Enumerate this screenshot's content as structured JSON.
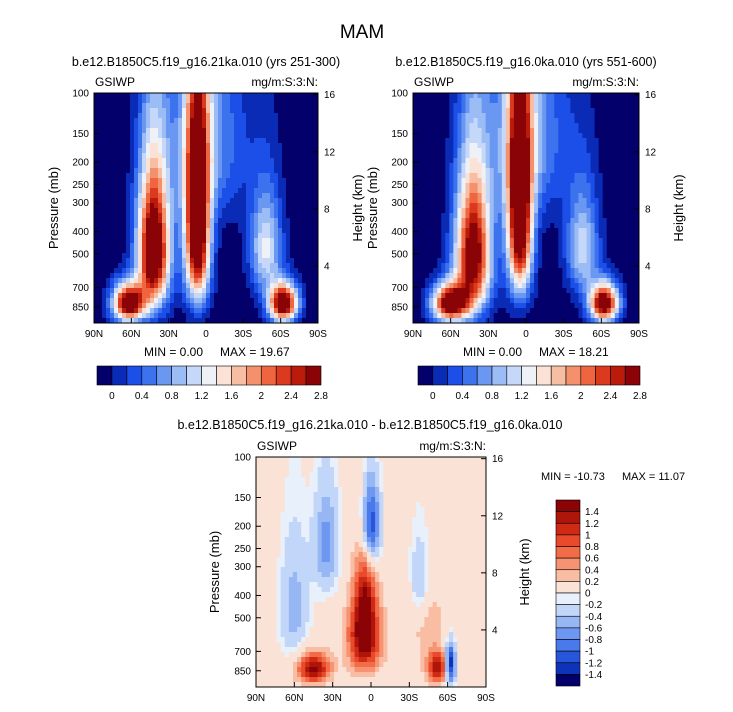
{
  "page_title": "MAM",
  "chart_data": [
    {
      "type": "heatmap",
      "title": "b.e12.B1850C5.f19_g16.21ka.010 (yrs 251-300)",
      "left_label": "GSIWP",
      "right_label": "mg/m:S:3:N:",
      "xlabel": "",
      "ylabel": "Pressure (mb)",
      "ylabel_right": "Height (km)",
      "x_ticks": [
        "90N",
        "60N",
        "30N",
        "0",
        "30S",
        "60S",
        "90S"
      ],
      "y_ticks": [
        "100",
        "150",
        "200",
        "250",
        "300",
        "400",
        "500",
        "700",
        "850"
      ],
      "y_ticks_right": [
        "16",
        "12",
        "8",
        "4"
      ],
      "min_label": "MIN =  0.00",
      "max_label": "MAX = 19.67",
      "features": [
        {
          "lat": 42,
          "p": 480,
          "amp": 3.6,
          "sl": 9,
          "sp": 230
        },
        {
          "lat": 7,
          "p": 380,
          "amp": 3.8,
          "sl": 7,
          "sp": 260
        },
        {
          "lat": 62,
          "p": 820,
          "amp": 3.4,
          "sl": 9,
          "sp": 110
        },
        {
          "lat": -62,
          "p": 820,
          "amp": 3.4,
          "sl": 8,
          "sp": 110
        },
        {
          "lat": -48,
          "p": 470,
          "amp": 1.4,
          "sl": 9,
          "sp": 170
        },
        {
          "lat": 0,
          "p": 160,
          "amp": 0.9,
          "sl": 22,
          "sp": 120
        }
      ]
    },
    {
      "type": "heatmap",
      "title": "b.e12.B1850C5.f19_g16.0ka.010 (yrs 551-600)",
      "left_label": "GSIWP",
      "right_label": "mg/m:S:3:N:",
      "xlabel": "",
      "ylabel": "Pressure (mb)",
      "ylabel_right": "Height (km)",
      "x_ticks": [
        "90N",
        "60N",
        "30N",
        "0",
        "30S",
        "60S",
        "90S"
      ],
      "y_ticks": [
        "100",
        "150",
        "200",
        "250",
        "300",
        "400",
        "500",
        "700",
        "850"
      ],
      "y_ticks_right": [
        "16",
        "12",
        "8",
        "4"
      ],
      "min_label": "MIN =  0.00",
      "max_label": "MAX = 18.21",
      "features": [
        {
          "lat": 42,
          "p": 500,
          "amp": 3.2,
          "sl": 10,
          "sp": 240
        },
        {
          "lat": 5,
          "p": 340,
          "amp": 3.6,
          "sl": 7,
          "sp": 250
        },
        {
          "lat": 60,
          "p": 820,
          "amp": 3.3,
          "sl": 10,
          "sp": 110
        },
        {
          "lat": -62,
          "p": 820,
          "amp": 3.3,
          "sl": 8,
          "sp": 110
        },
        {
          "lat": -45,
          "p": 470,
          "amp": 1.3,
          "sl": 9,
          "sp": 170
        },
        {
          "lat": 0,
          "p": 150,
          "amp": 1.0,
          "sl": 22,
          "sp": 120
        }
      ]
    },
    {
      "type": "heatmap",
      "title": "b.e12.B1850C5.f19_g16.21ka.010 - b.e12.B1850C5.f19_g16.0ka.010",
      "left_label": "GSIWP",
      "right_label": "mg/m:S:3:N:",
      "xlabel": "",
      "ylabel": "Pressure (mb)",
      "ylabel_right": "Height (km)",
      "x_ticks": [
        "90N",
        "60N",
        "30N",
        "0",
        "30S",
        "60S",
        "90S"
      ],
      "y_ticks": [
        "100",
        "150",
        "200",
        "250",
        "300",
        "400",
        "500",
        "700",
        "850"
      ],
      "y_ticks_right": [
        "16",
        "12",
        "8",
        "4"
      ],
      "min_label": "MIN = -10.73",
      "max_label": "MAX =  11.07",
      "features": [
        {
          "lat": 5,
          "p": 620,
          "amp": 1.6,
          "sl": 9,
          "sp": 150
        },
        {
          "lat": 5,
          "p": 400,
          "amp": 1.0,
          "sl": 6,
          "sp": 130
        },
        {
          "lat": -40,
          "p": 520,
          "amp": 0.6,
          "sl": 10,
          "sp": 120
        },
        {
          "lat": 0,
          "p": 200,
          "amp": -1.3,
          "sl": 5,
          "sp": 60
        },
        {
          "lat": 35,
          "p": 240,
          "amp": -0.7,
          "sl": 7,
          "sp": 90
        },
        {
          "lat": 45,
          "p": 830,
          "amp": 1.5,
          "sl": 9,
          "sp": 90
        },
        {
          "lat": -52,
          "p": 820,
          "amp": 1.4,
          "sl": 6,
          "sp": 90
        },
        {
          "lat": -62,
          "p": 800,
          "amp": -1.6,
          "sl": 3,
          "sp": 110
        },
        {
          "lat": -38,
          "p": 420,
          "amp": -0.6,
          "sl": 6,
          "sp": 140
        },
        {
          "lat": 60,
          "p": 450,
          "amp": -0.5,
          "sl": 8,
          "sp": 200
        }
      ]
    }
  ],
  "colorbar_abs": {
    "labels": [
      "0",
      "0.4",
      "0.8",
      "1.2",
      "1.6",
      "2",
      "2.4",
      "2.8"
    ],
    "colors": [
      "#04006b",
      "#0a2bb5",
      "#1c4ee8",
      "#3c72ee",
      "#6a97f2",
      "#9cbcf6",
      "#c6d8fa",
      "#eef1f6",
      "#fbe2d6",
      "#f8bea4",
      "#f4916c",
      "#ee653f",
      "#dc3a1e",
      "#bb1b0b",
      "#8a0306"
    ]
  },
  "colorbar_diff": {
    "labels": [
      "1.4",
      "1.2",
      "1",
      "0.8",
      "0.6",
      "0.4",
      "0.2",
      "0",
      "-0.2",
      "-0.4",
      "-0.6",
      "-0.8",
      "-1",
      "-1.2",
      "-1.4"
    ],
    "colors": [
      "#8a0306",
      "#b01509",
      "#cf2b14",
      "#e84a2b",
      "#f26c47",
      "#f59373",
      "#f8bda3",
      "#fbe2d6",
      "#e8f0fb",
      "#c1d6f8",
      "#97b7f4",
      "#6d97f0",
      "#4a79ec",
      "#2756dd",
      "#0d33b8",
      "#04006b"
    ]
  }
}
